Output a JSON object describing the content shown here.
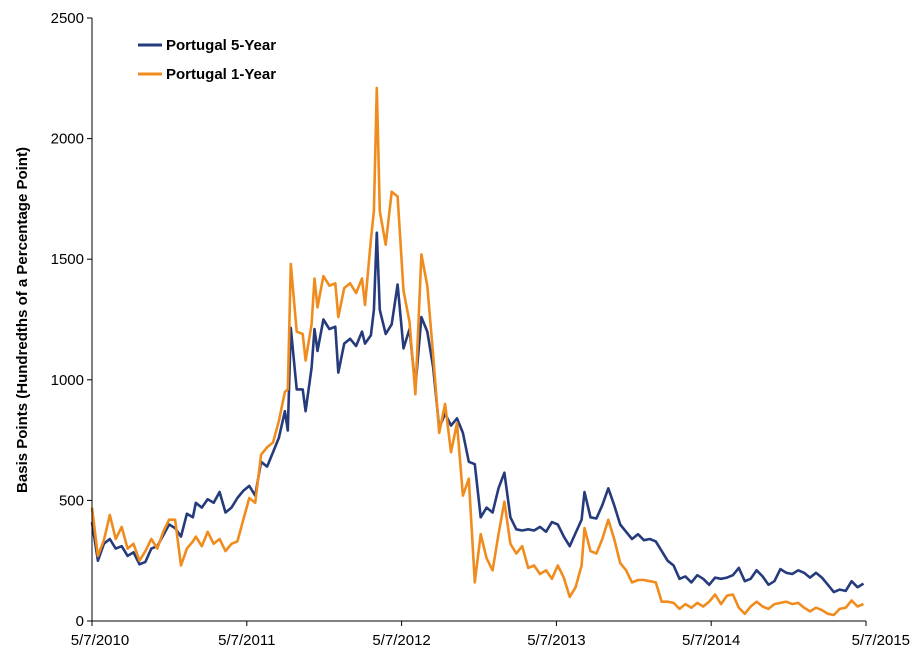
{
  "chart_data": {
    "type": "line",
    "title": "",
    "xlabel": "",
    "ylabel": "Basis Points (Hundredths of a Percentage Point)",
    "ylim": [
      0,
      2500
    ],
    "yticks": [
      "0",
      "500",
      "1000",
      "1500",
      "2000",
      "2500"
    ],
    "xticks": [
      "5/7/2010",
      "5/7/2011",
      "5/7/2012",
      "5/7/2013",
      "5/7/2014",
      "5/7/2015"
    ],
    "grid": false,
    "legend_position": "top-left",
    "colors": {
      "Portugal 5-Year": "#253b7c",
      "Portugal 1-Year": "#f08c1e"
    },
    "series": [
      {
        "name": "Portugal 5-Year",
        "points": [
          [
            "2010-05-07",
            410
          ],
          [
            "2010-05-21",
            250
          ],
          [
            "2010-06-04",
            320
          ],
          [
            "2010-06-18",
            340
          ],
          [
            "2010-07-02",
            300
          ],
          [
            "2010-07-16",
            310
          ],
          [
            "2010-07-30",
            270
          ],
          [
            "2010-08-13",
            285
          ],
          [
            "2010-08-27",
            235
          ],
          [
            "2010-09-10",
            245
          ],
          [
            "2010-09-24",
            300
          ],
          [
            "2010-10-08",
            310
          ],
          [
            "2010-10-22",
            355
          ],
          [
            "2010-11-05",
            400
          ],
          [
            "2010-11-19",
            385
          ],
          [
            "2010-12-03",
            350
          ],
          [
            "2010-12-17",
            445
          ],
          [
            "2010-12-31",
            430
          ],
          [
            "2011-01-07",
            490
          ],
          [
            "2011-01-21",
            470
          ],
          [
            "2011-02-04",
            505
          ],
          [
            "2011-02-18",
            490
          ],
          [
            "2011-03-04",
            535
          ],
          [
            "2011-03-18",
            450
          ],
          [
            "2011-04-01",
            470
          ],
          [
            "2011-04-15",
            510
          ],
          [
            "2011-04-29",
            540
          ],
          [
            "2011-05-13",
            560
          ],
          [
            "2011-05-27",
            520
          ],
          [
            "2011-06-10",
            660
          ],
          [
            "2011-06-24",
            640
          ],
          [
            "2011-07-08",
            700
          ],
          [
            "2011-07-22",
            760
          ],
          [
            "2011-08-05",
            870
          ],
          [
            "2011-08-12",
            790
          ],
          [
            "2011-08-19",
            1215
          ],
          [
            "2011-09-02",
            960
          ],
          [
            "2011-09-16",
            960
          ],
          [
            "2011-09-23",
            870
          ],
          [
            "2011-10-07",
            1050
          ],
          [
            "2011-10-14",
            1210
          ],
          [
            "2011-10-21",
            1120
          ],
          [
            "2011-11-04",
            1250
          ],
          [
            "2011-11-18",
            1210
          ],
          [
            "2011-12-02",
            1220
          ],
          [
            "2011-12-09",
            1030
          ],
          [
            "2011-12-23",
            1150
          ],
          [
            "2012-01-06",
            1170
          ],
          [
            "2012-01-20",
            1140
          ],
          [
            "2012-02-03",
            1200
          ],
          [
            "2012-02-10",
            1150
          ],
          [
            "2012-02-24",
            1185
          ],
          [
            "2012-03-02",
            1290
          ],
          [
            "2012-03-09",
            1610
          ],
          [
            "2012-03-16",
            1290
          ],
          [
            "2012-03-30",
            1190
          ],
          [
            "2012-04-13",
            1230
          ],
          [
            "2012-04-27",
            1395
          ],
          [
            "2012-05-11",
            1130
          ],
          [
            "2012-05-25",
            1210
          ],
          [
            "2012-06-08",
            970
          ],
          [
            "2012-06-22",
            1260
          ],
          [
            "2012-07-06",
            1200
          ],
          [
            "2012-07-20",
            1050
          ],
          [
            "2012-08-03",
            800
          ],
          [
            "2012-08-17",
            860
          ],
          [
            "2012-08-31",
            810
          ],
          [
            "2012-09-14",
            840
          ],
          [
            "2012-09-28",
            780
          ],
          [
            "2012-10-12",
            660
          ],
          [
            "2012-10-26",
            650
          ],
          [
            "2012-11-09",
            430
          ],
          [
            "2012-11-23",
            470
          ],
          [
            "2012-12-07",
            450
          ],
          [
            "2012-12-21",
            550
          ],
          [
            "2013-01-04",
            615
          ],
          [
            "2013-01-18",
            430
          ],
          [
            "2013-02-01",
            380
          ],
          [
            "2013-02-15",
            375
          ],
          [
            "2013-03-01",
            380
          ],
          [
            "2013-03-15",
            375
          ],
          [
            "2013-03-29",
            390
          ],
          [
            "2013-04-12",
            370
          ],
          [
            "2013-04-26",
            410
          ],
          [
            "2013-05-10",
            400
          ],
          [
            "2013-05-24",
            350
          ],
          [
            "2013-06-07",
            310
          ],
          [
            "2013-06-21",
            365
          ],
          [
            "2013-07-05",
            420
          ],
          [
            "2013-07-12",
            535
          ],
          [
            "2013-07-26",
            430
          ],
          [
            "2013-08-09",
            425
          ],
          [
            "2013-08-23",
            480
          ],
          [
            "2013-09-06",
            550
          ],
          [
            "2013-09-20",
            480
          ],
          [
            "2013-10-04",
            400
          ],
          [
            "2013-10-18",
            370
          ],
          [
            "2013-11-01",
            340
          ],
          [
            "2013-11-15",
            360
          ],
          [
            "2013-11-29",
            335
          ],
          [
            "2013-12-13",
            340
          ],
          [
            "2013-12-27",
            330
          ],
          [
            "2014-01-10",
            290
          ],
          [
            "2014-01-24",
            250
          ],
          [
            "2014-02-07",
            230
          ],
          [
            "2014-02-21",
            175
          ],
          [
            "2014-03-07",
            185
          ],
          [
            "2014-03-21",
            160
          ],
          [
            "2014-04-04",
            190
          ],
          [
            "2014-04-18",
            175
          ],
          [
            "2014-05-02",
            150
          ],
          [
            "2014-05-16",
            180
          ],
          [
            "2014-05-30",
            175
          ],
          [
            "2014-06-13",
            180
          ],
          [
            "2014-06-27",
            190
          ],
          [
            "2014-07-11",
            220
          ],
          [
            "2014-07-25",
            165
          ],
          [
            "2014-08-08",
            175
          ],
          [
            "2014-08-22",
            210
          ],
          [
            "2014-09-05",
            185
          ],
          [
            "2014-09-19",
            150
          ],
          [
            "2014-10-03",
            165
          ],
          [
            "2014-10-17",
            215
          ],
          [
            "2014-10-31",
            200
          ],
          [
            "2014-11-14",
            195
          ],
          [
            "2014-11-28",
            210
          ],
          [
            "2014-12-12",
            200
          ],
          [
            "2014-12-26",
            180
          ],
          [
            "2015-01-09",
            200
          ],
          [
            "2015-01-23",
            180
          ],
          [
            "2015-02-06",
            150
          ],
          [
            "2015-02-20",
            120
          ],
          [
            "2015-03-06",
            130
          ],
          [
            "2015-03-20",
            125
          ],
          [
            "2015-04-03",
            165
          ],
          [
            "2015-04-17",
            140
          ],
          [
            "2015-05-01",
            155
          ]
        ]
      },
      {
        "name": "Portugal 1-Year",
        "points": [
          [
            "2010-05-07",
            470
          ],
          [
            "2010-05-21",
            270
          ],
          [
            "2010-06-04",
            335
          ],
          [
            "2010-06-18",
            440
          ],
          [
            "2010-07-02",
            340
          ],
          [
            "2010-07-16",
            390
          ],
          [
            "2010-07-30",
            300
          ],
          [
            "2010-08-13",
            320
          ],
          [
            "2010-08-27",
            250
          ],
          [
            "2010-09-10",
            290
          ],
          [
            "2010-09-24",
            340
          ],
          [
            "2010-10-08",
            300
          ],
          [
            "2010-10-22",
            370
          ],
          [
            "2010-11-05",
            420
          ],
          [
            "2010-11-19",
            420
          ],
          [
            "2010-12-03",
            230
          ],
          [
            "2010-12-17",
            300
          ],
          [
            "2010-12-31",
            330
          ],
          [
            "2011-01-07",
            350
          ],
          [
            "2011-01-21",
            310
          ],
          [
            "2011-02-04",
            370
          ],
          [
            "2011-02-18",
            320
          ],
          [
            "2011-03-04",
            340
          ],
          [
            "2011-03-18",
            290
          ],
          [
            "2011-04-01",
            320
          ],
          [
            "2011-04-15",
            330
          ],
          [
            "2011-04-29",
            420
          ],
          [
            "2011-05-13",
            510
          ],
          [
            "2011-05-27",
            490
          ],
          [
            "2011-06-10",
            690
          ],
          [
            "2011-06-24",
            720
          ],
          [
            "2011-07-08",
            740
          ],
          [
            "2011-07-22",
            830
          ],
          [
            "2011-08-05",
            950
          ],
          [
            "2011-08-12",
            960
          ],
          [
            "2011-08-19",
            1480
          ],
          [
            "2011-09-02",
            1200
          ],
          [
            "2011-09-16",
            1190
          ],
          [
            "2011-09-23",
            1080
          ],
          [
            "2011-10-07",
            1230
          ],
          [
            "2011-10-14",
            1420
          ],
          [
            "2011-10-21",
            1300
          ],
          [
            "2011-11-04",
            1430
          ],
          [
            "2011-11-18",
            1390
          ],
          [
            "2011-12-02",
            1400
          ],
          [
            "2011-12-09",
            1260
          ],
          [
            "2011-12-23",
            1380
          ],
          [
            "2012-01-06",
            1400
          ],
          [
            "2012-01-20",
            1360
          ],
          [
            "2012-02-03",
            1420
          ],
          [
            "2012-02-10",
            1310
          ],
          [
            "2012-02-24",
            1580
          ],
          [
            "2012-03-02",
            1700
          ],
          [
            "2012-03-09",
            2210
          ],
          [
            "2012-03-16",
            1700
          ],
          [
            "2012-03-30",
            1560
          ],
          [
            "2012-04-13",
            1780
          ],
          [
            "2012-04-27",
            1760
          ],
          [
            "2012-05-11",
            1370
          ],
          [
            "2012-05-25",
            1240
          ],
          [
            "2012-06-08",
            940
          ],
          [
            "2012-06-22",
            1520
          ],
          [
            "2012-07-06",
            1390
          ],
          [
            "2012-07-20",
            1100
          ],
          [
            "2012-08-03",
            780
          ],
          [
            "2012-08-17",
            900
          ],
          [
            "2012-08-31",
            700
          ],
          [
            "2012-09-14",
            820
          ],
          [
            "2012-09-28",
            520
          ],
          [
            "2012-10-12",
            590
          ],
          [
            "2012-10-26",
            160
          ],
          [
            "2012-11-09",
            360
          ],
          [
            "2012-11-23",
            260
          ],
          [
            "2012-12-07",
            210
          ],
          [
            "2012-12-21",
            360
          ],
          [
            "2013-01-04",
            495
          ],
          [
            "2013-01-18",
            320
          ],
          [
            "2013-02-01",
            280
          ],
          [
            "2013-02-15",
            310
          ],
          [
            "2013-03-01",
            220
          ],
          [
            "2013-03-15",
            230
          ],
          [
            "2013-03-29",
            195
          ],
          [
            "2013-04-12",
            210
          ],
          [
            "2013-04-26",
            175
          ],
          [
            "2013-05-10",
            230
          ],
          [
            "2013-05-24",
            180
          ],
          [
            "2013-06-07",
            100
          ],
          [
            "2013-06-21",
            140
          ],
          [
            "2013-07-05",
            230
          ],
          [
            "2013-07-12",
            385
          ],
          [
            "2013-07-26",
            290
          ],
          [
            "2013-08-09",
            280
          ],
          [
            "2013-08-23",
            340
          ],
          [
            "2013-09-06",
            420
          ],
          [
            "2013-09-20",
            340
          ],
          [
            "2013-10-04",
            240
          ],
          [
            "2013-10-18",
            210
          ],
          [
            "2013-11-01",
            160
          ],
          [
            "2013-11-15",
            170
          ],
          [
            "2013-11-29",
            170
          ],
          [
            "2013-12-13",
            165
          ],
          [
            "2013-12-27",
            160
          ],
          [
            "2014-01-10",
            80
          ],
          [
            "2014-01-24",
            80
          ],
          [
            "2014-02-07",
            75
          ],
          [
            "2014-02-21",
            50
          ],
          [
            "2014-03-07",
            70
          ],
          [
            "2014-03-21",
            55
          ],
          [
            "2014-04-04",
            75
          ],
          [
            "2014-04-18",
            60
          ],
          [
            "2014-05-02",
            80
          ],
          [
            "2014-05-16",
            110
          ],
          [
            "2014-05-30",
            70
          ],
          [
            "2014-06-13",
            105
          ],
          [
            "2014-06-27",
            110
          ],
          [
            "2014-07-11",
            55
          ],
          [
            "2014-07-25",
            30
          ],
          [
            "2014-08-08",
            60
          ],
          [
            "2014-08-22",
            80
          ],
          [
            "2014-09-05",
            60
          ],
          [
            "2014-09-19",
            50
          ],
          [
            "2014-10-03",
            70
          ],
          [
            "2014-10-17",
            75
          ],
          [
            "2014-10-31",
            80
          ],
          [
            "2014-11-14",
            70
          ],
          [
            "2014-11-28",
            75
          ],
          [
            "2014-12-12",
            55
          ],
          [
            "2014-12-26",
            40
          ],
          [
            "2015-01-09",
            55
          ],
          [
            "2015-01-23",
            45
          ],
          [
            "2015-02-06",
            30
          ],
          [
            "2015-02-20",
            25
          ],
          [
            "2015-03-06",
            50
          ],
          [
            "2015-03-20",
            55
          ],
          [
            "2015-04-03",
            85
          ],
          [
            "2015-04-17",
            60
          ],
          [
            "2015-05-01",
            70
          ]
        ]
      }
    ]
  }
}
